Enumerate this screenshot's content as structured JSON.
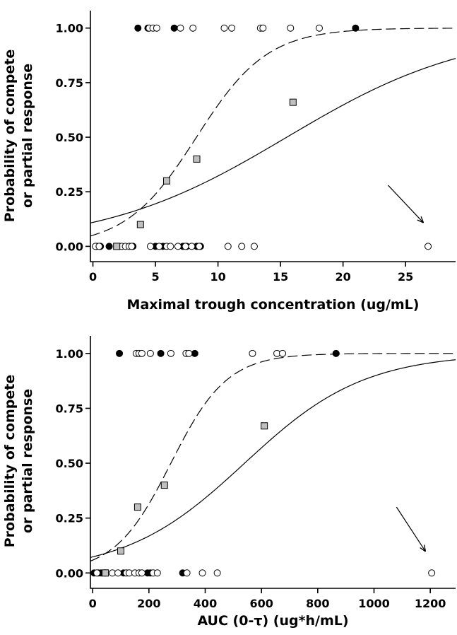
{
  "chart_data": [
    {
      "type": "scatter",
      "xlabel": "Maximal trough concentration (ug/mL)",
      "ylabel": [
        "Probability of compete",
        "or partial response"
      ],
      "xlim": [
        -0.2,
        29
      ],
      "ylim": [
        -0.07,
        1.08
      ],
      "xticks": [
        0,
        5,
        10,
        15,
        20,
        25
      ],
      "yticks": [
        0.0,
        0.25,
        0.5,
        0.75,
        1.0
      ],
      "ytick_labels": [
        "0.00",
        "0.25",
        "0.50",
        "0.75",
        "1.00"
      ],
      "grid": false,
      "series": [
        {
          "marker": "filled-circle",
          "color": "#000000",
          "points": [
            [
              3.6,
              1
            ],
            [
              4.4,
              1
            ],
            [
              6.5,
              1
            ],
            [
              21,
              1
            ],
            [
              0.3,
              0
            ],
            [
              0.6,
              0
            ],
            [
              1.3,
              0
            ],
            [
              3.2,
              0
            ],
            [
              5.0,
              0
            ],
            [
              5.6,
              0
            ],
            [
              7.2,
              0
            ],
            [
              7.5,
              0
            ],
            [
              8.3,
              0
            ],
            [
              8.6,
              0
            ]
          ]
        },
        {
          "marker": "open-circle",
          "color": "#000000",
          "points": [
            [
              4.5,
              1
            ],
            [
              4.8,
              1
            ],
            [
              5.1,
              1
            ],
            [
              7.0,
              1
            ],
            [
              8.0,
              1
            ],
            [
              10.5,
              1
            ],
            [
              11.1,
              1
            ],
            [
              13.4,
              1
            ],
            [
              13.6,
              1
            ],
            [
              15.8,
              1
            ],
            [
              18.1,
              1
            ],
            [
              0.2,
              0
            ],
            [
              0.5,
              0
            ],
            [
              2.3,
              0
            ],
            [
              2.6,
              0
            ],
            [
              2.9,
              0
            ],
            [
              3.1,
              0
            ],
            [
              4.6,
              0
            ],
            [
              5.3,
              0
            ],
            [
              5.9,
              0
            ],
            [
              6.2,
              0
            ],
            [
              6.8,
              0
            ],
            [
              7.4,
              0
            ],
            [
              7.9,
              0
            ],
            [
              8.5,
              0
            ],
            [
              10.8,
              0
            ],
            [
              11.9,
              0
            ],
            [
              12.9,
              0
            ],
            [
              26.8,
              0
            ]
          ]
        },
        {
          "marker": "gray-square",
          "color": "#bfbfbf",
          "points": [
            [
              1.9,
              0
            ],
            [
              3.8,
              0.1
            ],
            [
              5.9,
              0.3
            ],
            [
              8.3,
              0.4
            ],
            [
              16,
              0.66
            ]
          ]
        }
      ],
      "curves": [
        {
          "style": "solid",
          "model": "logistic",
          "midpoint": 15.5,
          "slope": 0.135
        },
        {
          "style": "dashed",
          "model": "logistic",
          "midpoint": 8.28,
          "slope": 0.353
        }
      ],
      "annotation": {
        "type": "arrow",
        "from": [
          23.6,
          0.28
        ],
        "to": [
          26.4,
          0.11
        ]
      }
    },
    {
      "type": "scatter",
      "xlabel": "AUC (0-τ) (ug*h/mL)",
      "ylabel": [
        "Probability of compete",
        "or partial response"
      ],
      "xlim": [
        -8,
        1290
      ],
      "ylim": [
        -0.07,
        1.08
      ],
      "xticks": [
        0,
        200,
        400,
        600,
        800,
        1000,
        1200
      ],
      "yticks": [
        0.0,
        0.25,
        0.5,
        0.75,
        1.0
      ],
      "ytick_labels": [
        "0.00",
        "0.25",
        "0.50",
        "0.75",
        "1.00"
      ],
      "grid": false,
      "series": [
        {
          "marker": "filled-circle",
          "color": "#000000",
          "points": [
            [
              95,
              1
            ],
            [
              242,
              1
            ],
            [
              363,
              1
            ],
            [
              865,
              1
            ],
            [
              5,
              0
            ],
            [
              20,
              0
            ],
            [
              30,
              0
            ],
            [
              110,
              0
            ],
            [
              195,
              0
            ],
            [
              205,
              0
            ],
            [
              320,
              0
            ]
          ]
        },
        {
          "marker": "open-circle",
          "color": "#000000",
          "points": [
            [
              155,
              1
            ],
            [
              165,
              1
            ],
            [
              175,
              1
            ],
            [
              205,
              1
            ],
            [
              278,
              1
            ],
            [
              332,
              1
            ],
            [
              342,
              1
            ],
            [
              568,
              1
            ],
            [
              655,
              1
            ],
            [
              675,
              1
            ],
            [
              15,
              0
            ],
            [
              45,
              0
            ],
            [
              70,
              0
            ],
            [
              90,
              0
            ],
            [
              120,
              0
            ],
            [
              130,
              0
            ],
            [
              150,
              0
            ],
            [
              165,
              0
            ],
            [
              175,
              0
            ],
            [
              215,
              0
            ],
            [
              230,
              0
            ],
            [
              335,
              0
            ],
            [
              390,
              0
            ],
            [
              443,
              0
            ],
            [
              1205,
              0
            ]
          ]
        },
        {
          "marker": "gray-square",
          "color": "#bfbfbf",
          "points": [
            [
              45,
              0
            ],
            [
              100,
              0.1
            ],
            [
              160,
              0.3
            ],
            [
              255,
              0.4
            ],
            [
              610,
              0.67
            ]
          ]
        }
      ],
      "curves": [
        {
          "style": "solid",
          "model": "logistic",
          "midpoint": 540,
          "slope": 0.0047
        },
        {
          "style": "dashed",
          "model": "logistic",
          "midpoint": 278,
          "slope": 0.01
        }
      ],
      "annotation": {
        "type": "arrow",
        "from": [
          1080,
          0.3
        ],
        "to": [
          1182,
          0.1
        ]
      }
    }
  ]
}
